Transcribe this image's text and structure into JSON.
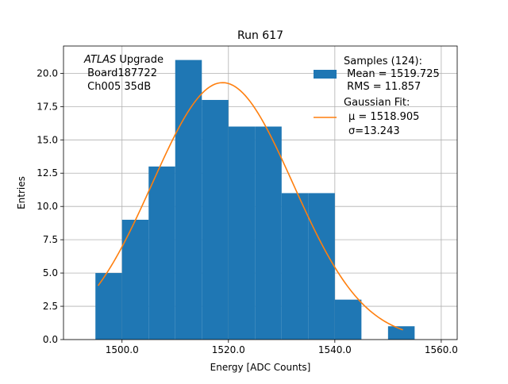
{
  "chart_data": {
    "type": "bar",
    "title": "Run 617",
    "xlabel": "Energy [ADC Counts]",
    "ylabel": "Entries",
    "xlim": [
      1489,
      1563
    ],
    "ylim": [
      0,
      22.05
    ],
    "grid": true,
    "legend_position": "top-right",
    "x_ticks": [
      {
        "value": 1500,
        "label": "1500.0"
      },
      {
        "value": 1520,
        "label": "1520.0"
      },
      {
        "value": 1540,
        "label": "1540.0"
      },
      {
        "value": 1560,
        "label": "1560.0"
      }
    ],
    "y_ticks": [
      {
        "value": 0,
        "label": "0.0"
      },
      {
        "value": 2.5,
        "label": "2.5"
      },
      {
        "value": 5,
        "label": "5.0"
      },
      {
        "value": 7.5,
        "label": "7.5"
      },
      {
        "value": 10,
        "label": "10.0"
      },
      {
        "value": 12.5,
        "label": "12.5"
      },
      {
        "value": 15,
        "label": "15.0"
      },
      {
        "value": 17.5,
        "label": "17.5"
      },
      {
        "value": 20,
        "label": "20.0"
      }
    ],
    "bin_edges": [
      1495,
      1500,
      1505,
      1510,
      1515,
      1520,
      1525,
      1530,
      1535,
      1540,
      1545,
      1550,
      1555
    ],
    "values": [
      5,
      9,
      13,
      21,
      18,
      16,
      16,
      11,
      11,
      3,
      0,
      1
    ],
    "bar_color": "#1f77b4",
    "fit": {
      "color": "#ff7f0e",
      "mu": 1518.905,
      "sigma": 13.243,
      "amplitude": 19.3,
      "x_range": [
        1495.5,
        1552.8
      ]
    },
    "annotation": {
      "italic": "ATLAS",
      "line1_rest": " Upgrade",
      "line2": " Board187722",
      "line3": " Ch005 35dB"
    },
    "legend": [
      {
        "kind": "bar",
        "lines": [
          "Samples (124):",
          " Mean = 1519.725",
          " RMS = 11.857"
        ]
      },
      {
        "kind": "line",
        "lines": [
          "Gaussian Fit:",
          "μ = 1518.905",
          "σ=13.243"
        ]
      }
    ]
  }
}
